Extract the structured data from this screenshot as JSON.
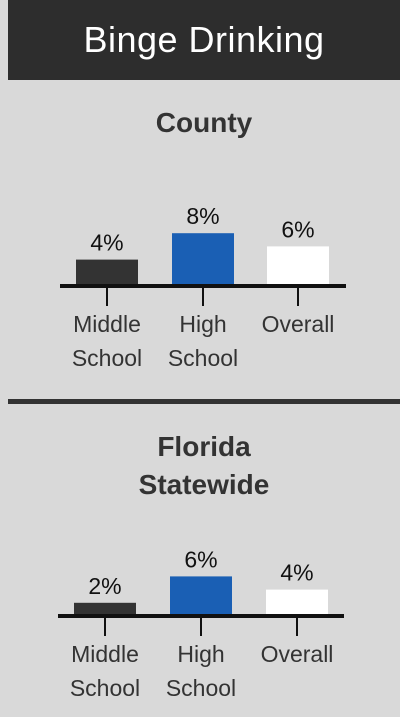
{
  "header": {
    "title": "Binge Drinking"
  },
  "colors": {
    "middle": "#333333",
    "high": "#1a5fb4",
    "overall": "#ffffff",
    "axis": "#111111"
  },
  "chart_data": [
    {
      "type": "bar",
      "title": "County",
      "categories": [
        "Middle School",
        "High School",
        "Overall"
      ],
      "category_lines": [
        [
          "Middle",
          "School"
        ],
        [
          "High",
          "School"
        ],
        [
          "Overall"
        ]
      ],
      "values": [
        4,
        8,
        6
      ],
      "labels": [
        "4%",
        "8%",
        "6%"
      ],
      "ylim": [
        0,
        8
      ],
      "grid": false
    },
    {
      "type": "bar",
      "title": "Florida Statewide",
      "title_lines": [
        "Florida",
        "Statewide"
      ],
      "categories": [
        "Middle School",
        "High School",
        "Overall"
      ],
      "category_lines": [
        [
          "Middle",
          "School"
        ],
        [
          "High",
          "School"
        ],
        [
          "Overall"
        ]
      ],
      "values": [
        2,
        6,
        4
      ],
      "labels": [
        "2%",
        "6%",
        "4%"
      ],
      "ylim": [
        0,
        8
      ],
      "grid": false
    }
  ]
}
